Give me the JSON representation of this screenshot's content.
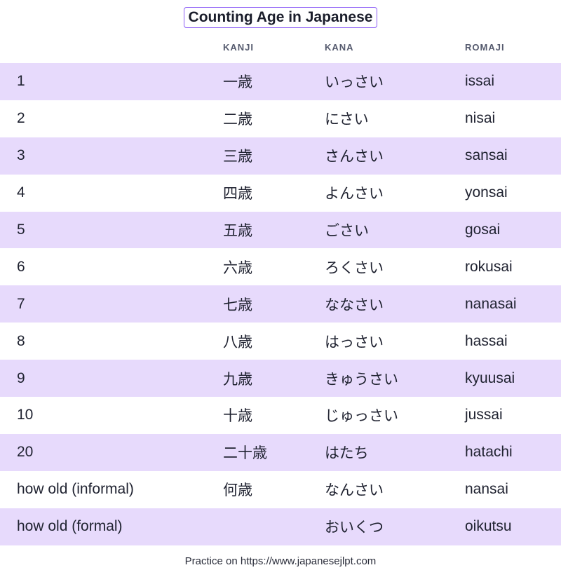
{
  "title": "Counting Age in Japanese",
  "headers": {
    "number": "",
    "kanji": "KANJI",
    "kana": "KANA",
    "romaji": "ROMAJI"
  },
  "rows": [
    {
      "number": "1",
      "kanji": "一歳",
      "kana": "いっさい",
      "romaji": "issai"
    },
    {
      "number": "2",
      "kanji": "二歳",
      "kana": "にさい",
      "romaji": "nisai"
    },
    {
      "number": "3",
      "kanji": "三歳",
      "kana": "さんさい",
      "romaji": "sansai"
    },
    {
      "number": "4",
      "kanji": "四歳",
      "kana": "よんさい",
      "romaji": "yonsai"
    },
    {
      "number": "5",
      "kanji": "五歳",
      "kana": "ごさい",
      "romaji": "gosai"
    },
    {
      "number": "6",
      "kanji": "六歳",
      "kana": "ろくさい",
      "romaji": "rokusai"
    },
    {
      "number": "7",
      "kanji": "七歳",
      "kana": "ななさい",
      "romaji": "nanasai"
    },
    {
      "number": "8",
      "kanji": "八歳",
      "kana": "はっさい",
      "romaji": "hassai"
    },
    {
      "number": "9",
      "kanji": "九歳",
      "kana": "きゅうさい",
      "romaji": "kyuusai"
    },
    {
      "number": "10",
      "kanji": "十歳",
      "kana": "じゅっさい",
      "romaji": "jussai"
    },
    {
      "number": "20",
      "kanji": "二十歳",
      "kana": "はたち",
      "romaji": "hatachi"
    },
    {
      "number": "how old (informal)",
      "kanji": "何歳",
      "kana": "なんさい",
      "romaji": "nansai"
    },
    {
      "number": "how old (formal)",
      "kanji": "",
      "kana": "おいくつ",
      "romaji": "oikutsu"
    }
  ],
  "footer": "Practice on https://www.japanesejlpt.com",
  "colors": {
    "row_shade": "#e7dafc",
    "title_border": "#8b5cf6"
  }
}
